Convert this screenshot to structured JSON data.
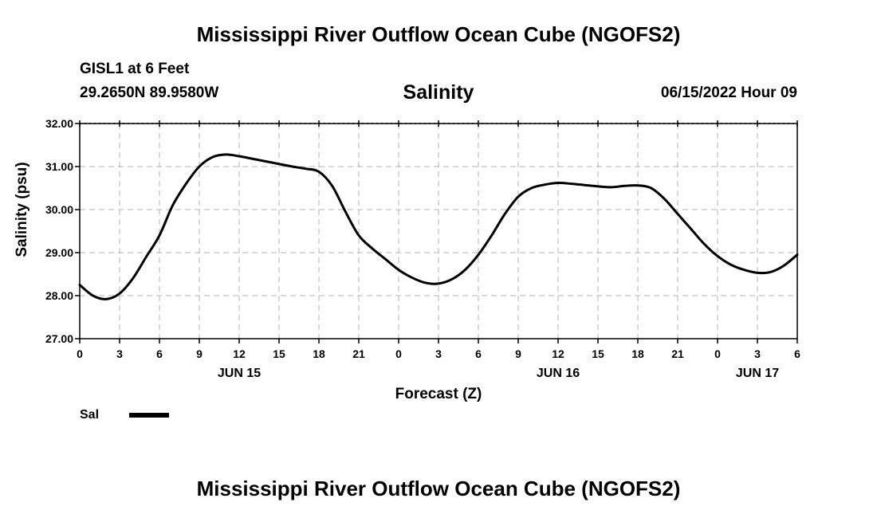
{
  "top_title": "Mississippi River Outflow Ocean Cube (NGOFS2)",
  "bottom_title": "Mississippi River Outflow Ocean Cube (NGOFS2)",
  "station": "GISL1 at 6 Feet",
  "coords": "29.2650N  89.9580W",
  "timestamp": "06/15/2022 Hour 09",
  "chart_data": {
    "type": "line",
    "title": "Salinity",
    "xlabel": "Forecast (Z)",
    "ylabel": "Salinity (psu)",
    "xlim": [
      0,
      54
    ],
    "ylim": [
      27,
      32
    ],
    "yticks": [
      "27.00",
      "28.00",
      "29.00",
      "30.00",
      "31.00",
      "32.00"
    ],
    "xtick_hours": [
      0,
      3,
      6,
      9,
      12,
      15,
      18,
      21,
      24,
      27,
      30,
      33,
      36,
      39,
      42,
      45,
      48,
      51,
      54
    ],
    "xtick_labels": [
      "0",
      "3",
      "6",
      "9",
      "12",
      "15",
      "18",
      "21",
      "0",
      "3",
      "6",
      "9",
      "12",
      "15",
      "18",
      "21",
      "0",
      "3",
      "6"
    ],
    "date_labels": [
      {
        "hour": 12,
        "label": "JUN 15"
      },
      {
        "hour": 36,
        "label": "JUN 16"
      },
      {
        "hour": 51,
        "label": "JUN 17"
      }
    ],
    "grid": true,
    "legend": [
      {
        "name": "Sal",
        "color": "#000000"
      }
    ],
    "series": [
      {
        "name": "Sal",
        "color": "#000000",
        "x": [
          0,
          1,
          2,
          3,
          4,
          5,
          6,
          7,
          8,
          9,
          10,
          11,
          12,
          13,
          14,
          15,
          16,
          17,
          18,
          19,
          20,
          21,
          22,
          23,
          24,
          25,
          26,
          27,
          28,
          29,
          30,
          31,
          32,
          33,
          34,
          35,
          36,
          37,
          38,
          39,
          40,
          41,
          42,
          43,
          44,
          45,
          46,
          47,
          48,
          49,
          50,
          51,
          52,
          53,
          54
        ],
        "values": [
          28.25,
          28.0,
          27.92,
          28.05,
          28.4,
          28.9,
          29.4,
          30.1,
          30.6,
          31.0,
          31.22,
          31.28,
          31.24,
          31.18,
          31.12,
          31.06,
          31.0,
          30.95,
          30.88,
          30.55,
          29.95,
          29.4,
          29.1,
          28.85,
          28.6,
          28.42,
          28.3,
          28.28,
          28.38,
          28.6,
          28.95,
          29.4,
          29.9,
          30.3,
          30.5,
          30.58,
          30.62,
          30.6,
          30.57,
          30.54,
          30.52,
          30.55,
          30.56,
          30.5,
          30.25,
          29.9,
          29.55,
          29.2,
          28.92,
          28.72,
          28.6,
          28.53,
          28.55,
          28.7,
          28.95
        ]
      }
    ]
  }
}
